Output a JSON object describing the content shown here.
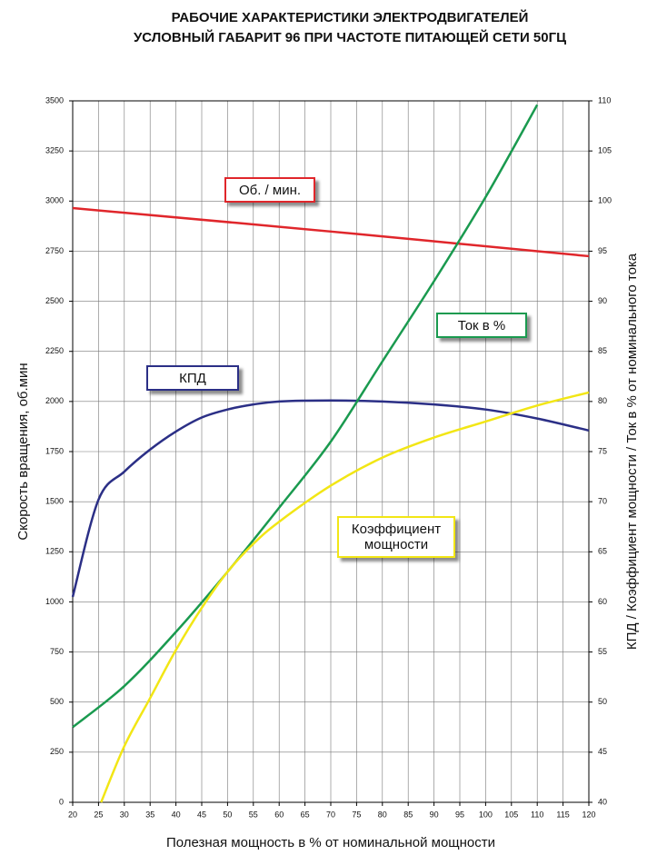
{
  "chart_data": {
    "type": "line",
    "title": [
      "РАБОЧИЕ ХАРАКТЕРИСТИКИ ЭЛЕКТРОДВИГАТЕЛЕЙ",
      "УСЛОВНЫЙ ГАБАРИТ 96 ПРИ ЧАСТОТЕ ПИТАЮЩЕЙ СЕТИ 50ГЦ"
    ],
    "x_label": "Полезная мощность в % от номинальной мощности",
    "y_label": "Скорость вращения, об.мин",
    "y2_label": "КПД / Коэффициент мощности / Ток в % от номинального тока",
    "xlim": [
      20,
      120
    ],
    "xticks": [
      20,
      25,
      30,
      35,
      40,
      45,
      50,
      55,
      60,
      65,
      70,
      75,
      80,
      85,
      90,
      95,
      100,
      105,
      110,
      115,
      120
    ],
    "ylim": [
      0,
      3500
    ],
    "yticks": [
      0,
      250,
      500,
      750,
      1000,
      1250,
      1500,
      1750,
      2000,
      2250,
      2500,
      2750,
      3000,
      3250,
      3500
    ],
    "y2lim": [
      40,
      110
    ],
    "y2ticks": [
      40,
      45,
      50,
      55,
      60,
      65,
      70,
      75,
      80,
      85,
      90,
      95,
      100,
      105,
      110
    ],
    "grid": true,
    "series": [
      {
        "name": "Об. / мин.",
        "color": "#e0262b",
        "x": [
          20,
          70,
          120
        ],
        "values": [
          2965,
          2848,
          2725
        ]
      },
      {
        "name": "КПД",
        "color": "#2b2f86",
        "axis": "y2",
        "x": [
          20,
          25,
          30,
          35,
          40,
          45,
          50,
          55,
          60,
          70,
          80,
          90,
          100,
          110,
          120
        ],
        "values": [
          60.5,
          70.2,
          73,
          75.2,
          77,
          78.4,
          79.2,
          79.7,
          80,
          80.1,
          80,
          79.7,
          79.2,
          78.3,
          77.1
        ]
      },
      {
        "name": "Ток в %",
        "color": "#1a9a4f",
        "axis": "y2",
        "x": [
          20,
          30,
          40,
          50,
          60,
          70,
          80,
          90,
          100,
          110
        ],
        "values": [
          47.5,
          51.6,
          57,
          63,
          69.4,
          76,
          84,
          92,
          100.4,
          109.6
        ]
      },
      {
        "name": "Коэффициент мощности",
        "color": "#f2e615",
        "axis": "y2",
        "x": [
          25.5,
          30,
          35,
          40,
          45,
          50,
          55,
          60,
          70,
          80,
          90,
          100,
          110,
          120
        ],
        "values": [
          40,
          45.6,
          50.4,
          55.2,
          59.4,
          63,
          65.8,
          68,
          71.6,
          74.4,
          76.4,
          78,
          79.6,
          80.9
        ]
      }
    ]
  }
}
